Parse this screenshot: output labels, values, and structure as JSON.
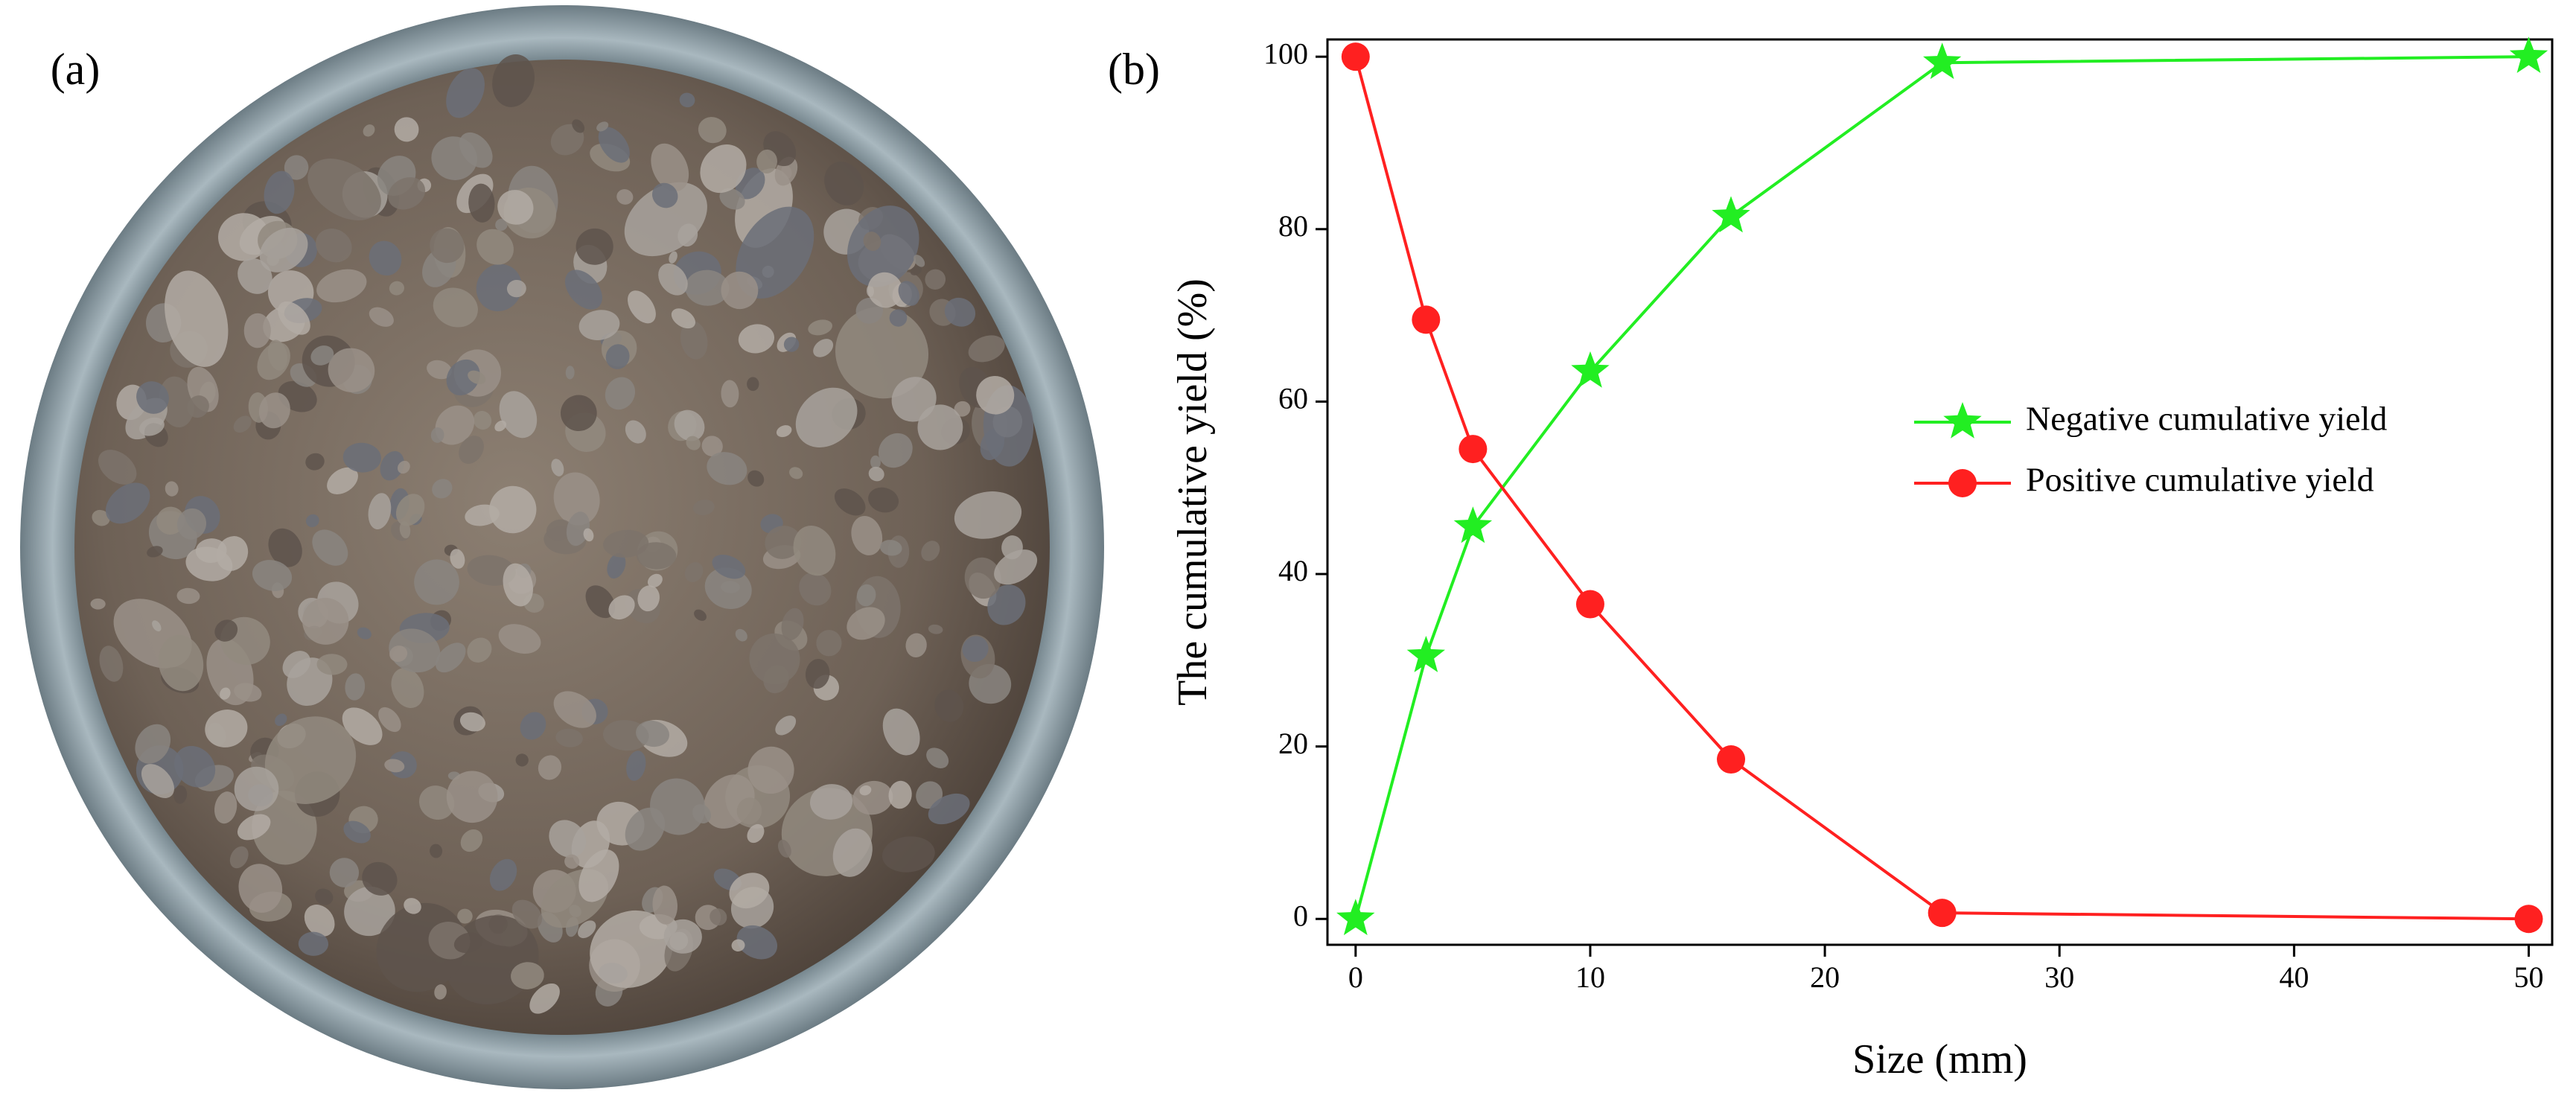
{
  "panels": {
    "a": "(a)",
    "b": "(b)"
  },
  "chart_data": {
    "type": "line",
    "xlabel": "Size (mm)",
    "ylabel": "The cumulative yield (%)",
    "x": [
      0,
      3,
      5,
      10,
      16,
      25,
      50
    ],
    "series": [
      {
        "name": "Negative cumulative yield",
        "color": "#22ee22",
        "marker": "star",
        "values": [
          0,
          30.5,
          45.5,
          63.5,
          81.5,
          99.3,
          100
        ]
      },
      {
        "name": "Positive cumulative yield",
        "color": "#ff2020",
        "marker": "circle",
        "values": [
          100,
          69.5,
          54.5,
          36.5,
          18.5,
          0.7,
          0
        ]
      }
    ],
    "xlim": [
      -1.2,
      51
    ],
    "ylim": [
      -3,
      102
    ],
    "xticks": [
      0,
      10,
      20,
      30,
      40,
      50
    ],
    "yticks": [
      0,
      20,
      40,
      60,
      80,
      100
    ]
  }
}
